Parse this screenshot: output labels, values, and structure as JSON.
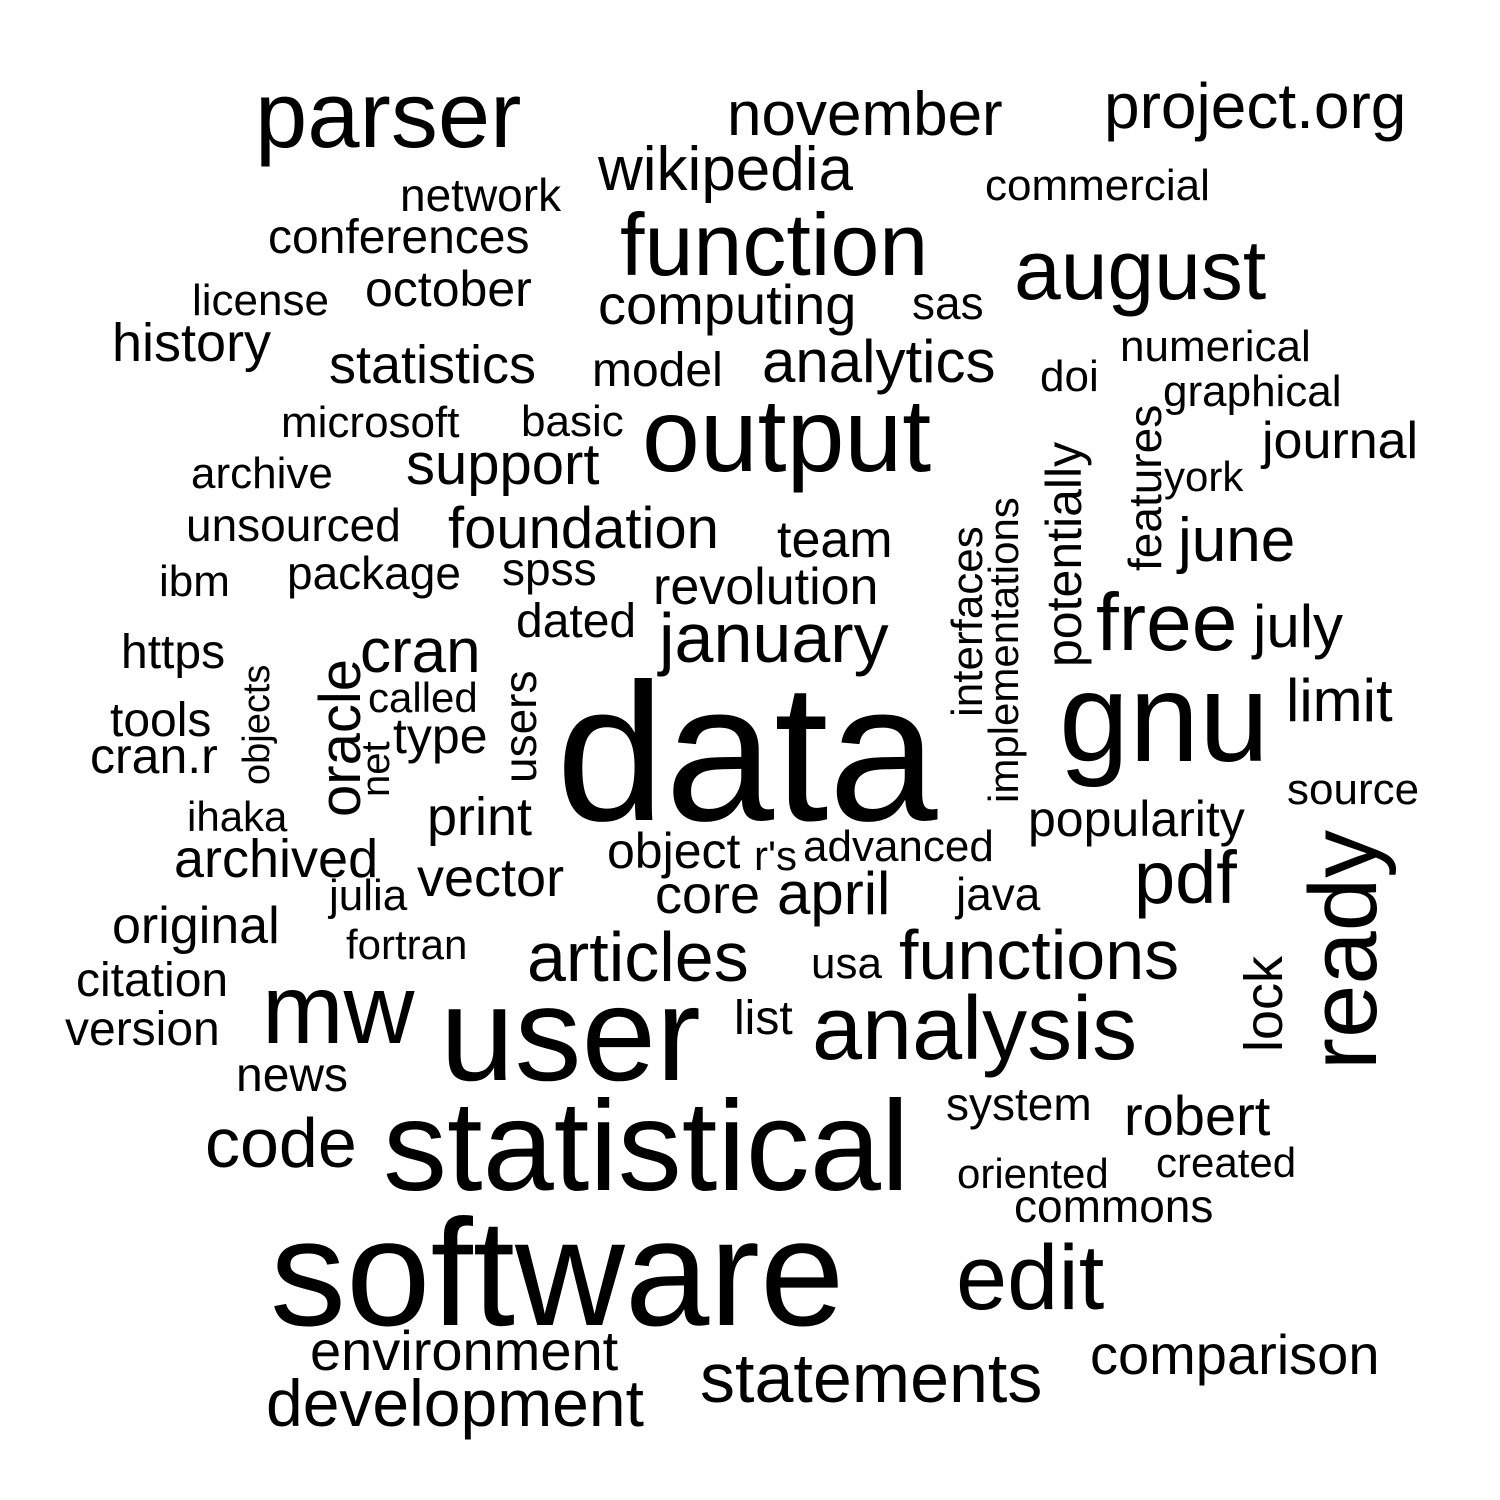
{
  "cloud": {
    "text_color": "#000000",
    "background": "#ffffff",
    "words": [
      {
        "text": "parser"
      },
      {
        "text": "november"
      },
      {
        "text": "project.org"
      },
      {
        "text": "wikipedia"
      },
      {
        "text": "network"
      },
      {
        "text": "commercial"
      },
      {
        "text": "conferences"
      },
      {
        "text": "function"
      },
      {
        "text": "august"
      },
      {
        "text": "license"
      },
      {
        "text": "october"
      },
      {
        "text": "computing"
      },
      {
        "text": "sas"
      },
      {
        "text": "history"
      },
      {
        "text": "statistics"
      },
      {
        "text": "model"
      },
      {
        "text": "analytics"
      },
      {
        "text": "numerical"
      },
      {
        "text": "doi"
      },
      {
        "text": "graphical"
      },
      {
        "text": "microsoft"
      },
      {
        "text": "basic"
      },
      {
        "text": "output"
      },
      {
        "text": "journal"
      },
      {
        "text": "archive"
      },
      {
        "text": "support"
      },
      {
        "text": "york"
      },
      {
        "text": "unsourced"
      },
      {
        "text": "foundation"
      },
      {
        "text": "team"
      },
      {
        "text": "june"
      },
      {
        "text": "ibm"
      },
      {
        "text": "package"
      },
      {
        "text": "spss"
      },
      {
        "text": "revolution"
      },
      {
        "text": "dated"
      },
      {
        "text": "free"
      },
      {
        "text": "july"
      },
      {
        "text": "https"
      },
      {
        "text": "cran"
      },
      {
        "text": "january"
      },
      {
        "text": "called"
      },
      {
        "text": "gnu"
      },
      {
        "text": "limit"
      },
      {
        "text": "tools"
      },
      {
        "text": "type"
      },
      {
        "text": "cran.r"
      },
      {
        "text": "data"
      },
      {
        "text": "source"
      },
      {
        "text": "ihaka"
      },
      {
        "text": "print"
      },
      {
        "text": "popularity"
      },
      {
        "text": "archived"
      },
      {
        "text": "object"
      },
      {
        "text": "r's"
      },
      {
        "text": "advanced"
      },
      {
        "text": "vector"
      },
      {
        "text": "pdf"
      },
      {
        "text": "julia"
      },
      {
        "text": "core"
      },
      {
        "text": "april"
      },
      {
        "text": "java"
      },
      {
        "text": "original"
      },
      {
        "text": "fortran"
      },
      {
        "text": "articles"
      },
      {
        "text": "functions"
      },
      {
        "text": "usa"
      },
      {
        "text": "citation"
      },
      {
        "text": "mw"
      },
      {
        "text": "list"
      },
      {
        "text": "user"
      },
      {
        "text": "analysis"
      },
      {
        "text": "version"
      },
      {
        "text": "news"
      },
      {
        "text": "system"
      },
      {
        "text": "robert"
      },
      {
        "text": "code"
      },
      {
        "text": "statistical"
      },
      {
        "text": "created"
      },
      {
        "text": "oriented"
      },
      {
        "text": "commons"
      },
      {
        "text": "software"
      },
      {
        "text": "edit"
      },
      {
        "text": "environment"
      },
      {
        "text": "comparison"
      },
      {
        "text": "statements"
      },
      {
        "text": "development"
      },
      {
        "text": "objects"
      },
      {
        "text": "oracle"
      },
      {
        "text": "net"
      },
      {
        "text": "users"
      },
      {
        "text": "interfaces"
      },
      {
        "text": "implementations"
      },
      {
        "text": "potentially"
      },
      {
        "text": "features"
      },
      {
        "text": "lock"
      },
      {
        "text": "ready"
      }
    ]
  }
}
